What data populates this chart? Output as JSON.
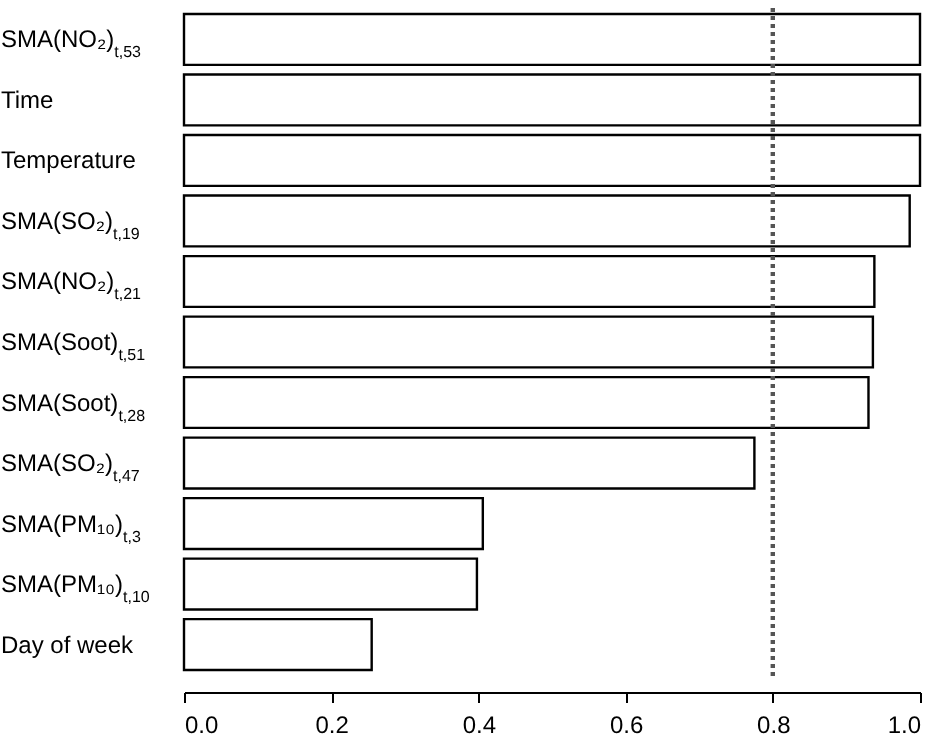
{
  "chart_data": {
    "type": "bar",
    "orientation": "horizontal",
    "categories": [
      "SMA(NO₂)$_{t,53}$",
      "Time",
      "Temperature",
      "SMA(SO₂)$_{t,19}$",
      "SMA(NO₂)$_{t,21}$",
      "SMA(Soot)$_{t,51}$",
      "SMA(Soot)$_{t,28}$",
      "SMA(SO₂)$_{t,47}$",
      "SMA(PM₁₀)$_{t,3}$",
      "SMA(PM₁₀)$_{t,10}$",
      "Day of week"
    ],
    "values": [
      1.0,
      1.0,
      1.0,
      0.986,
      0.938,
      0.936,
      0.93,
      0.775,
      0.406,
      0.398,
      0.255
    ],
    "color": "#ffffff",
    "xlim": [
      0,
      1
    ],
    "xticks": [
      "0.0",
      0.2,
      0.4,
      0.6,
      0.8,
      "1.0"
    ],
    "ref_lines": [
      {
        "axis": "x",
        "value": 0.8,
        "color": "#555555",
        "line_style": "dotted"
      }
    ],
    "grid": false
  }
}
